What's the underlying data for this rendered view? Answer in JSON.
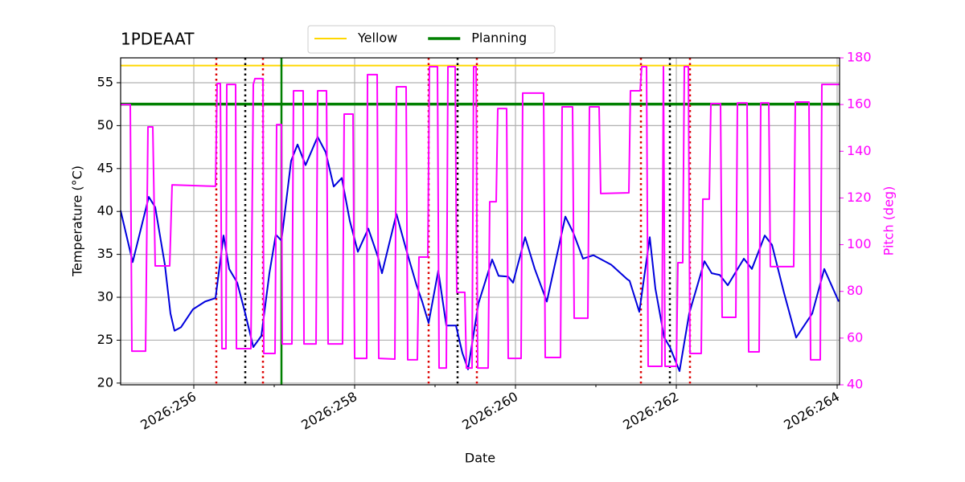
{
  "chart_data": {
    "type": "line",
    "title": "1PDEAAT",
    "xlabel": "Date",
    "ylabel": "Temperature (°C)",
    "y2label": "Pitch (deg)",
    "y2color": "#ff00ff",
    "xlim": [
      255.09,
      264.03
    ],
    "xticks": [
      {
        "value": 256,
        "label": "2026:256"
      },
      {
        "value": 258,
        "label": "2026:258"
      },
      {
        "value": 260,
        "label": "2026:260"
      },
      {
        "value": 262,
        "label": "2026:262"
      },
      {
        "value": 264,
        "label": "2026:264"
      }
    ],
    "xminorticks": [
      257,
      259,
      261,
      263
    ],
    "ylim": [
      19.8,
      57.9
    ],
    "yticks": [
      20,
      25,
      30,
      35,
      40,
      45,
      50,
      55
    ],
    "y2lim": [
      40,
      180
    ],
    "y2ticks": [
      40,
      60,
      80,
      100,
      120,
      140,
      160,
      180
    ],
    "grid": true,
    "legend": "upper center",
    "hlines": [
      {
        "name": "Yellow",
        "color": "#ffd700",
        "value": 57
      },
      {
        "name": "Planning",
        "color": "#008000",
        "value": 52.5
      }
    ],
    "vlines": [
      {
        "x": 256.28,
        "color": "#dd0000",
        "style": "dotted"
      },
      {
        "x": 256.86,
        "color": "#dd0000",
        "style": "dotted"
      },
      {
        "x": 258.92,
        "color": "#dd0000",
        "style": "dotted"
      },
      {
        "x": 259.52,
        "color": "#dd0000",
        "style": "dotted"
      },
      {
        "x": 261.56,
        "color": "#dd0000",
        "style": "dotted"
      },
      {
        "x": 262.17,
        "color": "#dd0000",
        "style": "dotted"
      },
      {
        "x": 256.64,
        "color": "#000000",
        "style": "dotted"
      },
      {
        "x": 259.28,
        "color": "#000000",
        "style": "dotted"
      },
      {
        "x": 261.92,
        "color": "#000000",
        "style": "dotted"
      },
      {
        "x": 257.09,
        "color": "#008000",
        "style": "solid"
      }
    ],
    "series": [
      {
        "color": "#0000dd",
        "x": [
          255.09,
          255.24,
          255.44,
          255.52,
          255.64,
          255.71,
          255.76,
          255.84,
          255.99,
          256.14,
          256.27,
          256.37,
          256.44,
          256.54,
          256.64,
          256.74,
          256.84,
          256.94,
          257.02,
          257.09,
          257.21,
          257.29,
          257.39,
          257.54,
          257.64,
          257.74,
          257.84,
          257.94,
          258.04,
          258.17,
          258.29,
          258.34,
          258.52,
          258.64,
          258.77,
          258.84,
          258.92,
          259.04,
          259.14,
          259.26,
          259.34,
          259.41,
          259.54,
          259.71,
          259.79,
          259.91,
          259.97,
          260.12,
          260.24,
          260.39,
          260.62,
          260.72,
          260.84,
          260.97,
          261.19,
          261.39,
          261.42,
          261.54,
          261.67,
          261.74,
          261.85,
          261.92,
          262.04,
          262.16,
          262.35,
          262.44,
          262.54,
          262.64,
          262.84,
          262.94,
          263.1,
          263.19,
          263.34,
          263.49,
          263.69,
          263.84,
          264.02
        ],
        "values": [
          40.1,
          34.1,
          41.7,
          40.5,
          33.8,
          28.1,
          26.1,
          26.5,
          28.6,
          29.5,
          29.9,
          37.2,
          33.3,
          31.7,
          28.1,
          24.2,
          25.5,
          32.8,
          37.3,
          36.6,
          45.9,
          47.8,
          45.4,
          48.7,
          46.9,
          42.9,
          43.9,
          38.9,
          35.3,
          38.0,
          34.7,
          32.8,
          39.7,
          35.6,
          31.4,
          29.5,
          27.0,
          33.1,
          26.7,
          26.7,
          23.5,
          21.6,
          29.3,
          34.4,
          32.5,
          32.4,
          31.7,
          37.0,
          33.3,
          29.5,
          39.4,
          37.5,
          34.5,
          34.9,
          33.8,
          32.1,
          31.9,
          28.3,
          37.0,
          31.0,
          25.3,
          24.2,
          21.4,
          28.1,
          34.2,
          32.8,
          32.6,
          31.4,
          34.5,
          33.3,
          37.2,
          36.1,
          30.5,
          25.3,
          28.1,
          33.3,
          29.5
        ]
      },
      {
        "color": "#ff00ff",
        "axis": "y2",
        "x": [
          255.09,
          255.21,
          255.23,
          255.4,
          255.43,
          255.49,
          255.52,
          255.7,
          255.73,
          256.27,
          256.29,
          256.33,
          256.35,
          256.4,
          256.41,
          256.52,
          256.53,
          256.71,
          256.74,
          256.76,
          256.86,
          256.87,
          257.01,
          257.03,
          257.09,
          257.1,
          257.22,
          257.24,
          257.36,
          257.37,
          257.52,
          257.54,
          257.65,
          257.67,
          257.85,
          257.87,
          257.98,
          258,
          258.15,
          258.16,
          258.28,
          258.3,
          258.5,
          258.52,
          258.64,
          258.66,
          258.78,
          258.8,
          258.91,
          258.93,
          259.03,
          259.05,
          259.14,
          259.16,
          259.25,
          259.27,
          259.37,
          259.39,
          259.46,
          259.48,
          259.51,
          259.53,
          259.66,
          259.68,
          259.76,
          259.78,
          259.89,
          259.91,
          260.07,
          260.09,
          260.35,
          260.37,
          260.56,
          260.58,
          260.71,
          260.73,
          260.9,
          260.92,
          261.04,
          261.06,
          261.41,
          261.43,
          261.55,
          261.57,
          261.63,
          261.65,
          261.82,
          261.84,
          261.86,
          262,
          262.02,
          262.08,
          262.1,
          262.15,
          262.17,
          262.31,
          262.33,
          262.41,
          262.43,
          262.55,
          262.57,
          262.74,
          262.76,
          262.88,
          262.9,
          263.03,
          263.05,
          263.15,
          263.17,
          263.46,
          263.48,
          263.65,
          263.67,
          263.79,
          263.81,
          264.03
        ],
        "values": [
          160,
          160,
          54.4,
          54.4,
          150.4,
          150.4,
          90.9,
          90.9,
          125.6,
          125.0,
          169.0,
          169.0,
          55.5,
          55.5,
          168.6,
          168.6,
          55.5,
          55.5,
          168.6,
          171.1,
          171.1,
          53.4,
          53.4,
          151.4,
          151.4,
          57.5,
          57.5,
          165.9,
          165.9,
          57.5,
          57.5,
          165.9,
          165.9,
          57.5,
          57.5,
          155.9,
          155.9,
          51.3,
          51.3,
          172.8,
          172.8,
          51.3,
          51.0,
          167.6,
          167.6,
          50.7,
          50.7,
          94.7,
          94.7,
          176.2,
          176.2,
          47.2,
          47.2,
          176.2,
          176.2,
          79.6,
          79.6,
          47.2,
          47.2,
          176.2,
          176.2,
          47.2,
          47.2,
          118.4,
          118.4,
          158.3,
          158.3,
          51.3,
          51.3,
          164.9,
          164.9,
          51.7,
          51.7,
          159.0,
          159.0,
          68.5,
          68.5,
          159.0,
          159.0,
          121.9,
          122.2,
          165.9,
          165.9,
          176.2,
          176.2,
          47.9,
          47.9,
          176.2,
          47.9,
          47.9,
          92.3,
          92.3,
          176.2,
          176.2,
          53.4,
          53.4,
          119.5,
          119.5,
          160.4,
          160.4,
          68.9,
          68.9,
          160.7,
          160.7,
          54.1,
          54.1,
          160.7,
          160.7,
          90.6,
          90.6,
          161.1,
          161.1,
          50.7,
          50.7,
          168.6,
          168.6
        ]
      }
    ]
  }
}
